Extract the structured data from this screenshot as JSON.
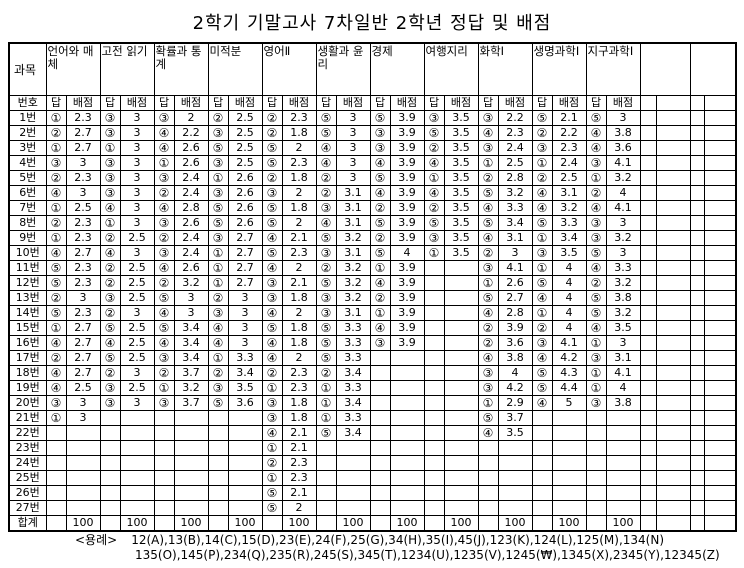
{
  "title": "2학기 기말고사 7차일반 2학년 정답 및 배점",
  "table": {
    "corner_label": "과목",
    "number_header": "번호",
    "answer_header": "답",
    "points_header": "배점",
    "subjects": [
      "언어와 매체",
      "고전 읽기",
      "확률과 통계",
      "미적분",
      "영어Ⅱ",
      "생활과 윤리",
      "경제",
      "여행지리",
      "화학Ⅰ",
      "생명과학Ⅰ",
      "지구과학Ⅰ"
    ],
    "empty_subject_slots": 2,
    "rows": [
      {
        "label": "1번",
        "cells": [
          "①",
          "2.3",
          "③",
          "3",
          "③",
          "2",
          "②",
          "2.5",
          "②",
          "2.3",
          "⑤",
          "3",
          "⑤",
          "3.9",
          "③",
          "3.5",
          "③",
          "2.2",
          "⑤",
          "2.1",
          "⑤",
          "3"
        ]
      },
      {
        "label": "2번",
        "cells": [
          "②",
          "2.7",
          "③",
          "3",
          "④",
          "2.2",
          "③",
          "2.5",
          "②",
          "1.8",
          "⑤",
          "3",
          "③",
          "3.9",
          "⑤",
          "3.5",
          "④",
          "2.3",
          "②",
          "2.2",
          "④",
          "3.8"
        ]
      },
      {
        "label": "3번",
        "cells": [
          "①",
          "2.7",
          "①",
          "3",
          "④",
          "2.6",
          "⑤",
          "2.5",
          "⑤",
          "2",
          "④",
          "3",
          "③",
          "3.9",
          "②",
          "3.5",
          "③",
          "2.4",
          "③",
          "2.3",
          "④",
          "3.6"
        ]
      },
      {
        "label": "4번",
        "cells": [
          "③",
          "3",
          "③",
          "3",
          "①",
          "2.6",
          "③",
          "2.5",
          "⑤",
          "2.3",
          "④",
          "3",
          "④",
          "3.9",
          "④",
          "3.5",
          "①",
          "2.5",
          "①",
          "2.4",
          "③",
          "4.1"
        ]
      },
      {
        "label": "5번",
        "cells": [
          "②",
          "2.3",
          "③",
          "3",
          "③",
          "2.4",
          "①",
          "2.6",
          "②",
          "1.8",
          "②",
          "3",
          "⑤",
          "3.9",
          "①",
          "3.5",
          "②",
          "2.8",
          "②",
          "2.5",
          "①",
          "3.2"
        ]
      },
      {
        "label": "6번",
        "cells": [
          "④",
          "3",
          "③",
          "3",
          "②",
          "2.4",
          "③",
          "2.6",
          "③",
          "2",
          "②",
          "3.1",
          "④",
          "3.9",
          "④",
          "3.5",
          "⑤",
          "3.2",
          "④",
          "3.1",
          "②",
          "4"
        ]
      },
      {
        "label": "7번",
        "cells": [
          "①",
          "2.5",
          "④",
          "3",
          "④",
          "2.8",
          "⑤",
          "2.6",
          "⑤",
          "1.8",
          "③",
          "3.1",
          "②",
          "3.9",
          "②",
          "3.5",
          "④",
          "3.3",
          "④",
          "3.2",
          "④",
          "4.1"
        ]
      },
      {
        "label": "8번",
        "cells": [
          "②",
          "2.3",
          "①",
          "3",
          "③",
          "2.6",
          "⑤",
          "2.6",
          "⑤",
          "2",
          "④",
          "3.1",
          "⑤",
          "3.9",
          "⑤",
          "3.5",
          "⑤",
          "3.4",
          "⑤",
          "3.3",
          "③",
          "3"
        ]
      },
      {
        "label": "9번",
        "cells": [
          "①",
          "2.3",
          "②",
          "2.5",
          "②",
          "2.4",
          "③",
          "2.7",
          "④",
          "2.1",
          "⑤",
          "3.2",
          "②",
          "3.9",
          "③",
          "3.5",
          "④",
          "3.1",
          "①",
          "3.4",
          "③",
          "3.2"
        ]
      },
      {
        "label": "10번",
        "cells": [
          "④",
          "2.7",
          "④",
          "3",
          "③",
          "2.4",
          "①",
          "2.7",
          "⑤",
          "2.3",
          "③",
          "3.1",
          "⑤",
          "4",
          "①",
          "3.5",
          "②",
          "3",
          "③",
          "3.5",
          "⑤",
          "3"
        ]
      },
      {
        "label": "11번",
        "cells": [
          "⑤",
          "2.3",
          "②",
          "2.5",
          "④",
          "2.6",
          "①",
          "2.7",
          "④",
          "2",
          "②",
          "3.2",
          "①",
          "3.9",
          "",
          "",
          "③",
          "4.1",
          "①",
          "4",
          "④",
          "3.3"
        ]
      },
      {
        "label": "12번",
        "cells": [
          "⑤",
          "2.3",
          "②",
          "2.5",
          "②",
          "3.2",
          "①",
          "2.7",
          "③",
          "2.1",
          "⑤",
          "3.2",
          "④",
          "3.9",
          "",
          "",
          "①",
          "2.6",
          "⑤",
          "4",
          "②",
          "3.2"
        ]
      },
      {
        "label": "13번",
        "cells": [
          "②",
          "3",
          "③",
          "2.5",
          "⑤",
          "3",
          "②",
          "3",
          "③",
          "1.8",
          "③",
          "3.2",
          "②",
          "3.9",
          "",
          "",
          "⑤",
          "2.7",
          "④",
          "4",
          "⑤",
          "3.8"
        ]
      },
      {
        "label": "14번",
        "cells": [
          "⑤",
          "2.3",
          "②",
          "3",
          "④",
          "3",
          "③",
          "3",
          "④",
          "2",
          "③",
          "3.1",
          "①",
          "3.9",
          "",
          "",
          "④",
          "2.8",
          "①",
          "4",
          "⑤",
          "3.2"
        ]
      },
      {
        "label": "15번",
        "cells": [
          "①",
          "2.7",
          "⑤",
          "2.5",
          "⑤",
          "3.4",
          "④",
          "3",
          "⑤",
          "1.8",
          "⑤",
          "3.3",
          "④",
          "3.9",
          "",
          "",
          "②",
          "3.9",
          "②",
          "4",
          "④",
          "3.5"
        ]
      },
      {
        "label": "16번",
        "cells": [
          "④",
          "2.7",
          "④",
          "2.5",
          "④",
          "3.4",
          "④",
          "3",
          "④",
          "1.8",
          "⑤",
          "3.3",
          "③",
          "3.9",
          "",
          "",
          "②",
          "3.6",
          "③",
          "4.1",
          "①",
          "3"
        ]
      },
      {
        "label": "17번",
        "cells": [
          "②",
          "2.7",
          "⑤",
          "2.5",
          "③",
          "3.4",
          "①",
          "3.3",
          "④",
          "2",
          "⑤",
          "3.3",
          "",
          "",
          "",
          "",
          "④",
          "3.8",
          "④",
          "4.2",
          "③",
          "3.1"
        ]
      },
      {
        "label": "18번",
        "cells": [
          "④",
          "2.7",
          "②",
          "3",
          "②",
          "3.7",
          "②",
          "3.4",
          "②",
          "2.3",
          "②",
          "3.4",
          "",
          "",
          "",
          "",
          "③",
          "4",
          "⑤",
          "4.3",
          "①",
          "4.1"
        ]
      },
      {
        "label": "19번",
        "cells": [
          "④",
          "2.5",
          "③",
          "2.5",
          "①",
          "3.2",
          "③",
          "3.5",
          "①",
          "2.3",
          "①",
          "3.3",
          "",
          "",
          "",
          "",
          "③",
          "4.2",
          "⑤",
          "4.4",
          "①",
          "4"
        ]
      },
      {
        "label": "20번",
        "cells": [
          "③",
          "3",
          "③",
          "3",
          "③",
          "3.7",
          "⑤",
          "3.6",
          "③",
          "1.8",
          "①",
          "3.4",
          "",
          "",
          "",
          "",
          "①",
          "2.9",
          "④",
          "5",
          "③",
          "3.8"
        ]
      },
      {
        "label": "21번",
        "cells": [
          "①",
          "3",
          "",
          "",
          "",
          "",
          "",
          "",
          "③",
          "1.8",
          "①",
          "3.3",
          "",
          "",
          "",
          "",
          "⑤",
          "3.7",
          "",
          "",
          "",
          ""
        ]
      },
      {
        "label": "22번",
        "cells": [
          "",
          "",
          "",
          "",
          "",
          "",
          "",
          "",
          "④",
          "2.1",
          "⑤",
          "3.4",
          "",
          "",
          "",
          "",
          "④",
          "3.5",
          "",
          "",
          "",
          ""
        ]
      },
      {
        "label": "23번",
        "cells": [
          "",
          "",
          "",
          "",
          "",
          "",
          "",
          "",
          "①",
          "2.1",
          "",
          "",
          "",
          "",
          "",
          "",
          "",
          "",
          "",
          "",
          "",
          ""
        ]
      },
      {
        "label": "24번",
        "cells": [
          "",
          "",
          "",
          "",
          "",
          "",
          "",
          "",
          "②",
          "2.3",
          "",
          "",
          "",
          "",
          "",
          "",
          "",
          "",
          "",
          "",
          "",
          ""
        ]
      },
      {
        "label": "25번",
        "cells": [
          "",
          "",
          "",
          "",
          "",
          "",
          "",
          "",
          "①",
          "2.3",
          "",
          "",
          "",
          "",
          "",
          "",
          "",
          "",
          "",
          "",
          "",
          ""
        ]
      },
      {
        "label": "26번",
        "cells": [
          "",
          "",
          "",
          "",
          "",
          "",
          "",
          "",
          "⑤",
          "2.1",
          "",
          "",
          "",
          "",
          "",
          "",
          "",
          "",
          "",
          "",
          "",
          ""
        ]
      },
      {
        "label": "27번",
        "cells": [
          "",
          "",
          "",
          "",
          "",
          "",
          "",
          "",
          "⑤",
          "2",
          "",
          "",
          "",
          "",
          "",
          "",
          "",
          "",
          "",
          "",
          "",
          ""
        ]
      },
      {
        "label": "합계",
        "cells": [
          "",
          "100",
          "",
          "100",
          "",
          "100",
          "",
          "100",
          "",
          "100",
          "",
          "100",
          "",
          "100",
          "",
          "100",
          "",
          "100",
          "",
          "100",
          "",
          "100"
        ]
      }
    ]
  },
  "legend": {
    "label": "<용례>",
    "line1": "12(A),13(B),14(C),15(D),23(E),24(F),25(G),34(H),35(I),45(J),123(K),124(L),125(M),134(N)",
    "line2": "135(O),145(P),234(Q),235(R),245(S),345(T),1234(U),1235(V),1245(₩),1345(X),2345(Y),12345(Z)"
  }
}
